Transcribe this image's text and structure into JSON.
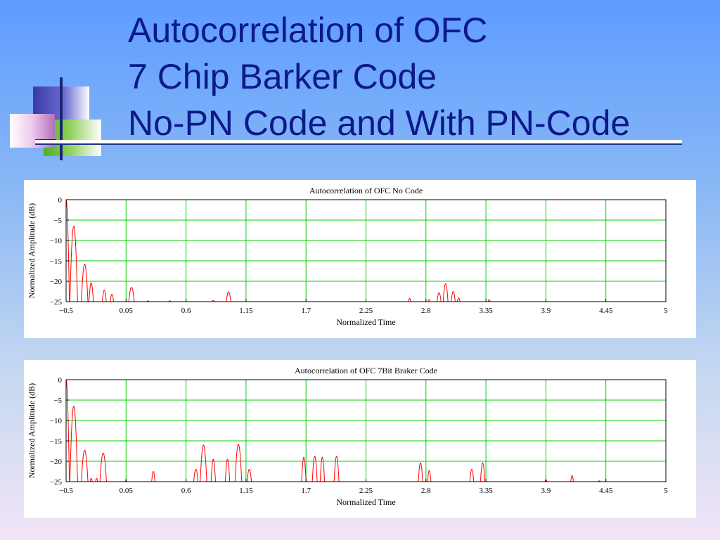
{
  "slide": {
    "title_lines": [
      "Autocorrelation of OFC",
      "7 Chip Barker Code",
      "No-PN Code and With PN-Code"
    ],
    "title_color": "#0b1a8a",
    "decoration": "overlapping-squares-logo"
  },
  "chart_data": [
    {
      "type": "line",
      "title": "Autocorrelation of OFC No Code",
      "xlabel": "Normalized Time",
      "ylabel": "Normalized Amplitude (dB)",
      "xlim": [
        -0.5,
        5
      ],
      "ylim": [
        -25,
        0
      ],
      "xticks": [
        -0.5,
        0.05,
        0.6,
        1.15,
        1.7,
        2.25,
        2.8,
        3.35,
        3.9,
        4.45,
        5
      ],
      "xtick_labels": [
        "−0.5",
        "0.05",
        "0.6",
        "1.15",
        "1.7",
        "2.25",
        "2.8",
        "3.35",
        "3.9",
        "4.45",
        "5"
      ],
      "yticks": [
        0,
        -5,
        -10,
        -15,
        -20,
        -25
      ],
      "ytick_labels": [
        "0",
        "−5",
        "−10",
        "−15",
        "−20",
        "−25"
      ],
      "grid": true,
      "grid_color": "#00d000",
      "line_color": "#ff0000",
      "series": [
        {
          "peaks": [
            {
              "x": -0.5,
              "y": 0,
              "w": 0.03
            },
            {
              "x": -0.43,
              "y": -6.5,
              "w": 0.035
            },
            {
              "x": -0.33,
              "y": -15.8,
              "w": 0.03
            },
            {
              "x": -0.27,
              "y": -20.4,
              "w": 0.02
            },
            {
              "x": -0.15,
              "y": -22.2,
              "w": 0.018
            },
            {
              "x": -0.08,
              "y": -23.2,
              "w": 0.015
            },
            {
              "x": 0.1,
              "y": -21.5,
              "w": 0.025
            },
            {
              "x": 0.25,
              "y": -24.8,
              "w": 0.01
            },
            {
              "x": 0.45,
              "y": -24.8,
              "w": 0.01
            },
            {
              "x": 0.85,
              "y": -24.7,
              "w": 0.01
            },
            {
              "x": 0.99,
              "y": -22.6,
              "w": 0.02
            },
            {
              "x": 2.65,
              "y": -24.2,
              "w": 0.01
            },
            {
              "x": 2.83,
              "y": -24.5,
              "w": 0.01
            },
            {
              "x": 2.92,
              "y": -22.8,
              "w": 0.018
            },
            {
              "x": 2.98,
              "y": -20.6,
              "w": 0.022
            },
            {
              "x": 3.05,
              "y": -22.5,
              "w": 0.018
            },
            {
              "x": 3.1,
              "y": -24.1,
              "w": 0.012
            },
            {
              "x": 3.38,
              "y": -24.5,
              "w": 0.01
            }
          ]
        }
      ]
    },
    {
      "type": "line",
      "title": "Autocorrelation of OFC 7Bit Braker Code",
      "xlabel": "Normalized Time",
      "ylabel": "Normalized Amplitude (dB)",
      "xlim": [
        -0.5,
        5
      ],
      "ylim": [
        -25,
        0
      ],
      "xticks": [
        -0.5,
        0.05,
        0.6,
        1.15,
        1.7,
        2.25,
        2.8,
        3.35,
        3.9,
        4.45,
        5
      ],
      "xtick_labels": [
        "−0.5",
        "0.05",
        "0.6",
        "1.15",
        "1.7",
        "2.25",
        "2.8",
        "3.35",
        "3.9",
        "4.45",
        "5"
      ],
      "yticks": [
        0,
        -5,
        -10,
        -15,
        -20,
        -25
      ],
      "ytick_labels": [
        "0",
        "−5",
        "−10",
        "−15",
        "−20",
        "−25"
      ],
      "grid": true,
      "grid_color": "#00d000",
      "line_color": "#ff0000",
      "series": [
        {
          "peaks": [
            {
              "x": -0.5,
              "y": 0,
              "w": 0.03
            },
            {
              "x": -0.43,
              "y": -6.5,
              "w": 0.035
            },
            {
              "x": -0.33,
              "y": -17.3,
              "w": 0.03
            },
            {
              "x": -0.27,
              "y": -24.2,
              "w": 0.01
            },
            {
              "x": -0.22,
              "y": -24.2,
              "w": 0.01
            },
            {
              "x": -0.16,
              "y": -18,
              "w": 0.03
            },
            {
              "x": 0.05,
              "y": -24.8,
              "w": 0.01
            },
            {
              "x": 0.3,
              "y": -22.5,
              "w": 0.015
            },
            {
              "x": 0.69,
              "y": -22,
              "w": 0.02
            },
            {
              "x": 0.76,
              "y": -16,
              "w": 0.03
            },
            {
              "x": 0.85,
              "y": -19.5,
              "w": 0.02
            },
            {
              "x": 0.98,
              "y": -19.5,
              "w": 0.02
            },
            {
              "x": 1.08,
              "y": -15.8,
              "w": 0.03
            },
            {
              "x": 1.18,
              "y": -22,
              "w": 0.02
            },
            {
              "x": 1.68,
              "y": -19,
              "w": 0.02
            },
            {
              "x": 1.78,
              "y": -18.8,
              "w": 0.022
            },
            {
              "x": 1.85,
              "y": -19,
              "w": 0.02
            },
            {
              "x": 1.98,
              "y": -18.8,
              "w": 0.022
            },
            {
              "x": 2.75,
              "y": -20.4,
              "w": 0.02
            },
            {
              "x": 2.83,
              "y": -22.3,
              "w": 0.015
            },
            {
              "x": 3.22,
              "y": -22,
              "w": 0.018
            },
            {
              "x": 3.32,
              "y": -20.4,
              "w": 0.02
            },
            {
              "x": 3.9,
              "y": -24.6,
              "w": 0.01
            },
            {
              "x": 4.14,
              "y": -23.5,
              "w": 0.012
            },
            {
              "x": 4.39,
              "y": -24.8,
              "w": 0.01
            }
          ]
        }
      ]
    }
  ]
}
